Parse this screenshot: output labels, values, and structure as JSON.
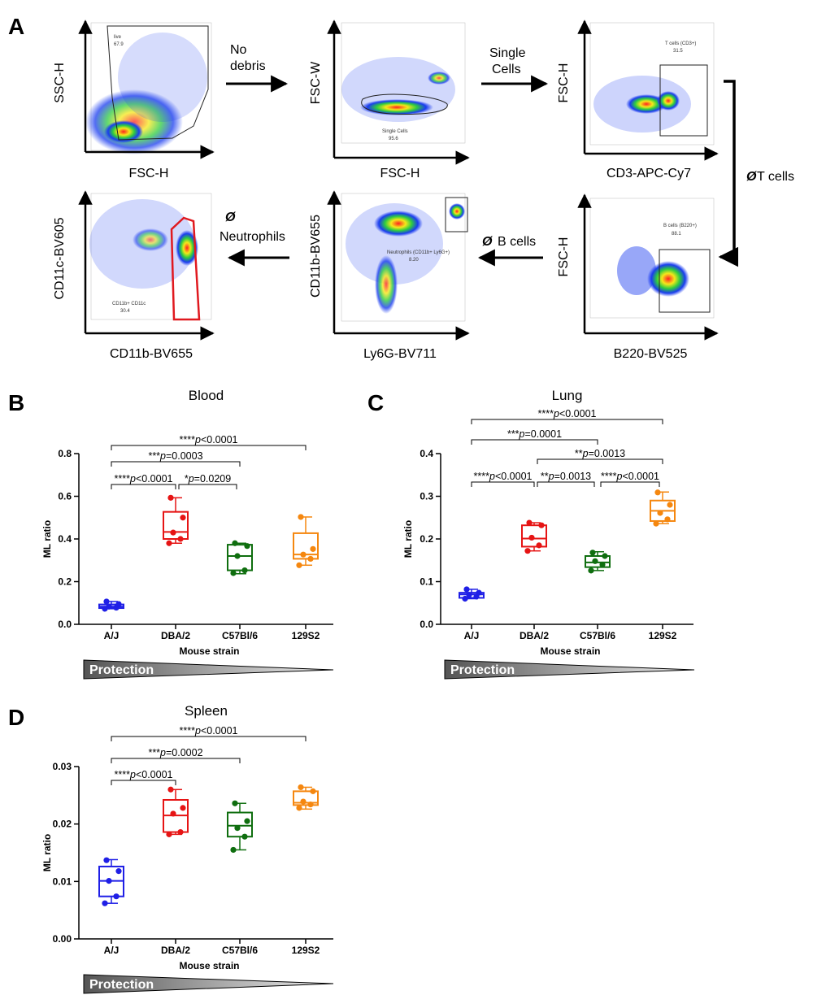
{
  "colors": {
    "AJ": "#1f1fe6",
    "DBA2": "#e61414",
    "C57": "#0f6e0f",
    "S129": "#f5870f"
  },
  "panels": {
    "A": "A",
    "B": "B",
    "C": "C",
    "D": "D"
  },
  "gating": {
    "plots": [
      {
        "ylabel": "SSC-H",
        "xlabel": "FSC-H",
        "gate_name": "live",
        "gate_value": "67.9"
      },
      {
        "ylabel": "FSC-W",
        "xlabel": "FSC-H",
        "gate_name": "Single Cells",
        "gate_value": "95.6"
      },
      {
        "ylabel": "FSC-H",
        "xlabel": "CD3-APC-Cy7",
        "gate_name": "T cells (CD3+)",
        "gate_value": "31.5"
      },
      {
        "ylabel": "FSC-H",
        "xlabel": "B220-BV525",
        "gate_name": "B cells (B220+)",
        "gate_value": "88.1"
      },
      {
        "ylabel": "CD11b-BV655",
        "xlabel": "Ly6G-BV711",
        "gate_name": "Neutrophils (CD11b+ Ly6G+)",
        "gate_value": "8.20"
      },
      {
        "ylabel": "CD11c-BV605",
        "xlabel": "CD11b-BV655",
        "gate_name": "CD11b+ CD11c",
        "gate_value": "30.4"
      }
    ],
    "arrows": {
      "no_debris_1": "No",
      "no_debris_2": "debris",
      "single_1": "Single",
      "single_2": "Cells",
      "no_t": "T cells",
      "no_b": "B cells",
      "no_neut": "Neutrophils",
      "null_symbol": "Ø"
    }
  },
  "protection_label": "Protection",
  "chart_data": [
    {
      "type": "box",
      "title": "Blood",
      "xlabel": "Mouse strain",
      "ylabel": "ML ratio",
      "categories": [
        "A/J",
        "DBA/2",
        "C57Bl/6",
        "129S2"
      ],
      "ylim": [
        0,
        0.8
      ],
      "yticks": [
        {
          "v": 0,
          "t": "0.0"
        },
        {
          "v": 0.2,
          "t": "0.2"
        },
        {
          "v": 0.4,
          "t": "0.4"
        },
        {
          "v": 0.6,
          "t": "0.6"
        },
        {
          "v": 0.8,
          "t": "0.8"
        }
      ],
      "series": [
        {
          "name": "A/J",
          "color": "AJ",
          "min": 0.073,
          "q1": 0.076,
          "median": 0.083,
          "q3": 0.093,
          "max": 0.107,
          "points": [
            0.073,
            0.078,
            0.083,
            0.095,
            0.107
          ]
        },
        {
          "name": "DBA/2",
          "color": "DBA2",
          "min": 0.38,
          "q1": 0.4,
          "median": 0.433,
          "q3": 0.527,
          "max": 0.593,
          "points": [
            0.38,
            0.4,
            0.43,
            0.5,
            0.593
          ]
        },
        {
          "name": "C57Bl/6",
          "color": "C57",
          "min": 0.237,
          "q1": 0.253,
          "median": 0.32,
          "q3": 0.373,
          "max": 0.38,
          "points": [
            0.24,
            0.253,
            0.32,
            0.367,
            0.38
          ]
        },
        {
          "name": "129S2",
          "color": "S129",
          "min": 0.277,
          "q1": 0.307,
          "median": 0.327,
          "q3": 0.427,
          "max": 0.503,
          "points": [
            0.277,
            0.307,
            0.327,
            0.353,
            0.503
          ]
        }
      ],
      "comparisons": [
        {
          "from": 0,
          "to": 3,
          "stars": "****",
          "p": "<0.0001"
        },
        {
          "from": 0,
          "to": 2,
          "stars": "***",
          "p": "=0.0003"
        },
        {
          "from": 0,
          "to": 1,
          "stars": "****",
          "p": "<0.0001"
        },
        {
          "from": 1,
          "to": 2,
          "stars": "*",
          "p": "=0.0209"
        }
      ]
    },
    {
      "type": "box",
      "title": "Lung",
      "xlabel": "Mouse strain",
      "ylabel": "ML ratio",
      "categories": [
        "A/J",
        "DBA/2",
        "C57Bl/6",
        "129S2"
      ],
      "ylim": [
        0,
        0.4
      ],
      "yticks": [
        {
          "v": 0,
          "t": "0.0"
        },
        {
          "v": 0.1,
          "t": "0.1"
        },
        {
          "v": 0.2,
          "t": "0.2"
        },
        {
          "v": 0.3,
          "t": "0.3"
        },
        {
          "v": 0.4,
          "t": "0.4"
        }
      ],
      "series": [
        {
          "name": "A/J",
          "color": "AJ",
          "min": 0.06,
          "q1": 0.062,
          "median": 0.07,
          "q3": 0.074,
          "max": 0.082,
          "points": [
            0.06,
            0.065,
            0.069,
            0.074,
            0.082
          ]
        },
        {
          "name": "DBA/2",
          "color": "DBA2",
          "min": 0.172,
          "q1": 0.182,
          "median": 0.201,
          "q3": 0.232,
          "max": 0.238,
          "points": [
            0.172,
            0.185,
            0.203,
            0.232,
            0.238
          ]
        },
        {
          "name": "C57Bl/6",
          "color": "C57",
          "min": 0.126,
          "q1": 0.134,
          "median": 0.145,
          "q3": 0.16,
          "max": 0.17,
          "points": [
            0.126,
            0.14,
            0.148,
            0.16,
            0.168
          ]
        },
        {
          "name": "129S2",
          "color": "S129",
          "min": 0.236,
          "q1": 0.242,
          "median": 0.266,
          "q3": 0.29,
          "max": 0.31,
          "points": [
            0.236,
            0.246,
            0.261,
            0.28,
            0.309
          ]
        }
      ],
      "comparisons": [
        {
          "from": 0,
          "to": 3,
          "stars": "****",
          "p": "<0.0001"
        },
        {
          "from": 0,
          "to": 2,
          "stars": "***",
          "p": "=0.0001"
        },
        {
          "from": 1,
          "to": 3,
          "stars": "**",
          "p": "=0.0013"
        },
        {
          "from": 0,
          "to": 1,
          "stars": "****",
          "p": "<0.0001"
        },
        {
          "from": 1,
          "to": 2,
          "stars": "**",
          "p": "=0.0013"
        },
        {
          "from": 2,
          "to": 3,
          "stars": "****",
          "p": "<0.0001"
        }
      ]
    },
    {
      "type": "box",
      "title": "Spleen",
      "xlabel": "Mouse strain",
      "ylabel": "ML ratio",
      "categories": [
        "A/J",
        "DBA/2",
        "C57Bl/6",
        "129S2"
      ],
      "ylim": [
        0,
        0.03
      ],
      "yticks": [
        {
          "v": 0,
          "t": "0.00"
        },
        {
          "v": 0.01,
          "t": "0.01"
        },
        {
          "v": 0.02,
          "t": "0.02"
        },
        {
          "v": 0.03,
          "t": "0.03"
        }
      ],
      "series": [
        {
          "name": "A/J",
          "color": "AJ",
          "min": 0.0062,
          "q1": 0.0074,
          "median": 0.0101,
          "q3": 0.0126,
          "max": 0.0138,
          "points": [
            0.0062,
            0.0074,
            0.0101,
            0.0118,
            0.0137
          ]
        },
        {
          "name": "DBA/2",
          "color": "DBA2",
          "min": 0.0182,
          "q1": 0.0186,
          "median": 0.0215,
          "q3": 0.0242,
          "max": 0.026,
          "points": [
            0.0182,
            0.0186,
            0.0218,
            0.0228,
            0.026
          ]
        },
        {
          "name": "C57Bl/6",
          "color": "C57",
          "min": 0.0155,
          "q1": 0.0178,
          "median": 0.0197,
          "q3": 0.022,
          "max": 0.0236,
          "points": [
            0.0155,
            0.0178,
            0.0193,
            0.0205,
            0.0236
          ]
        },
        {
          "name": "129S2",
          "color": "S129",
          "min": 0.0226,
          "q1": 0.0233,
          "median": 0.0237,
          "q3": 0.0257,
          "max": 0.0264,
          "points": [
            0.0228,
            0.0234,
            0.0239,
            0.0257,
            0.0264
          ]
        }
      ],
      "comparisons": [
        {
          "from": 0,
          "to": 3,
          "stars": "****",
          "p": "<0.0001"
        },
        {
          "from": 0,
          "to": 2,
          "stars": "***",
          "p": "=0.0002"
        },
        {
          "from": 0,
          "to": 1,
          "stars": "****",
          "p": "<0.0001"
        }
      ]
    }
  ]
}
